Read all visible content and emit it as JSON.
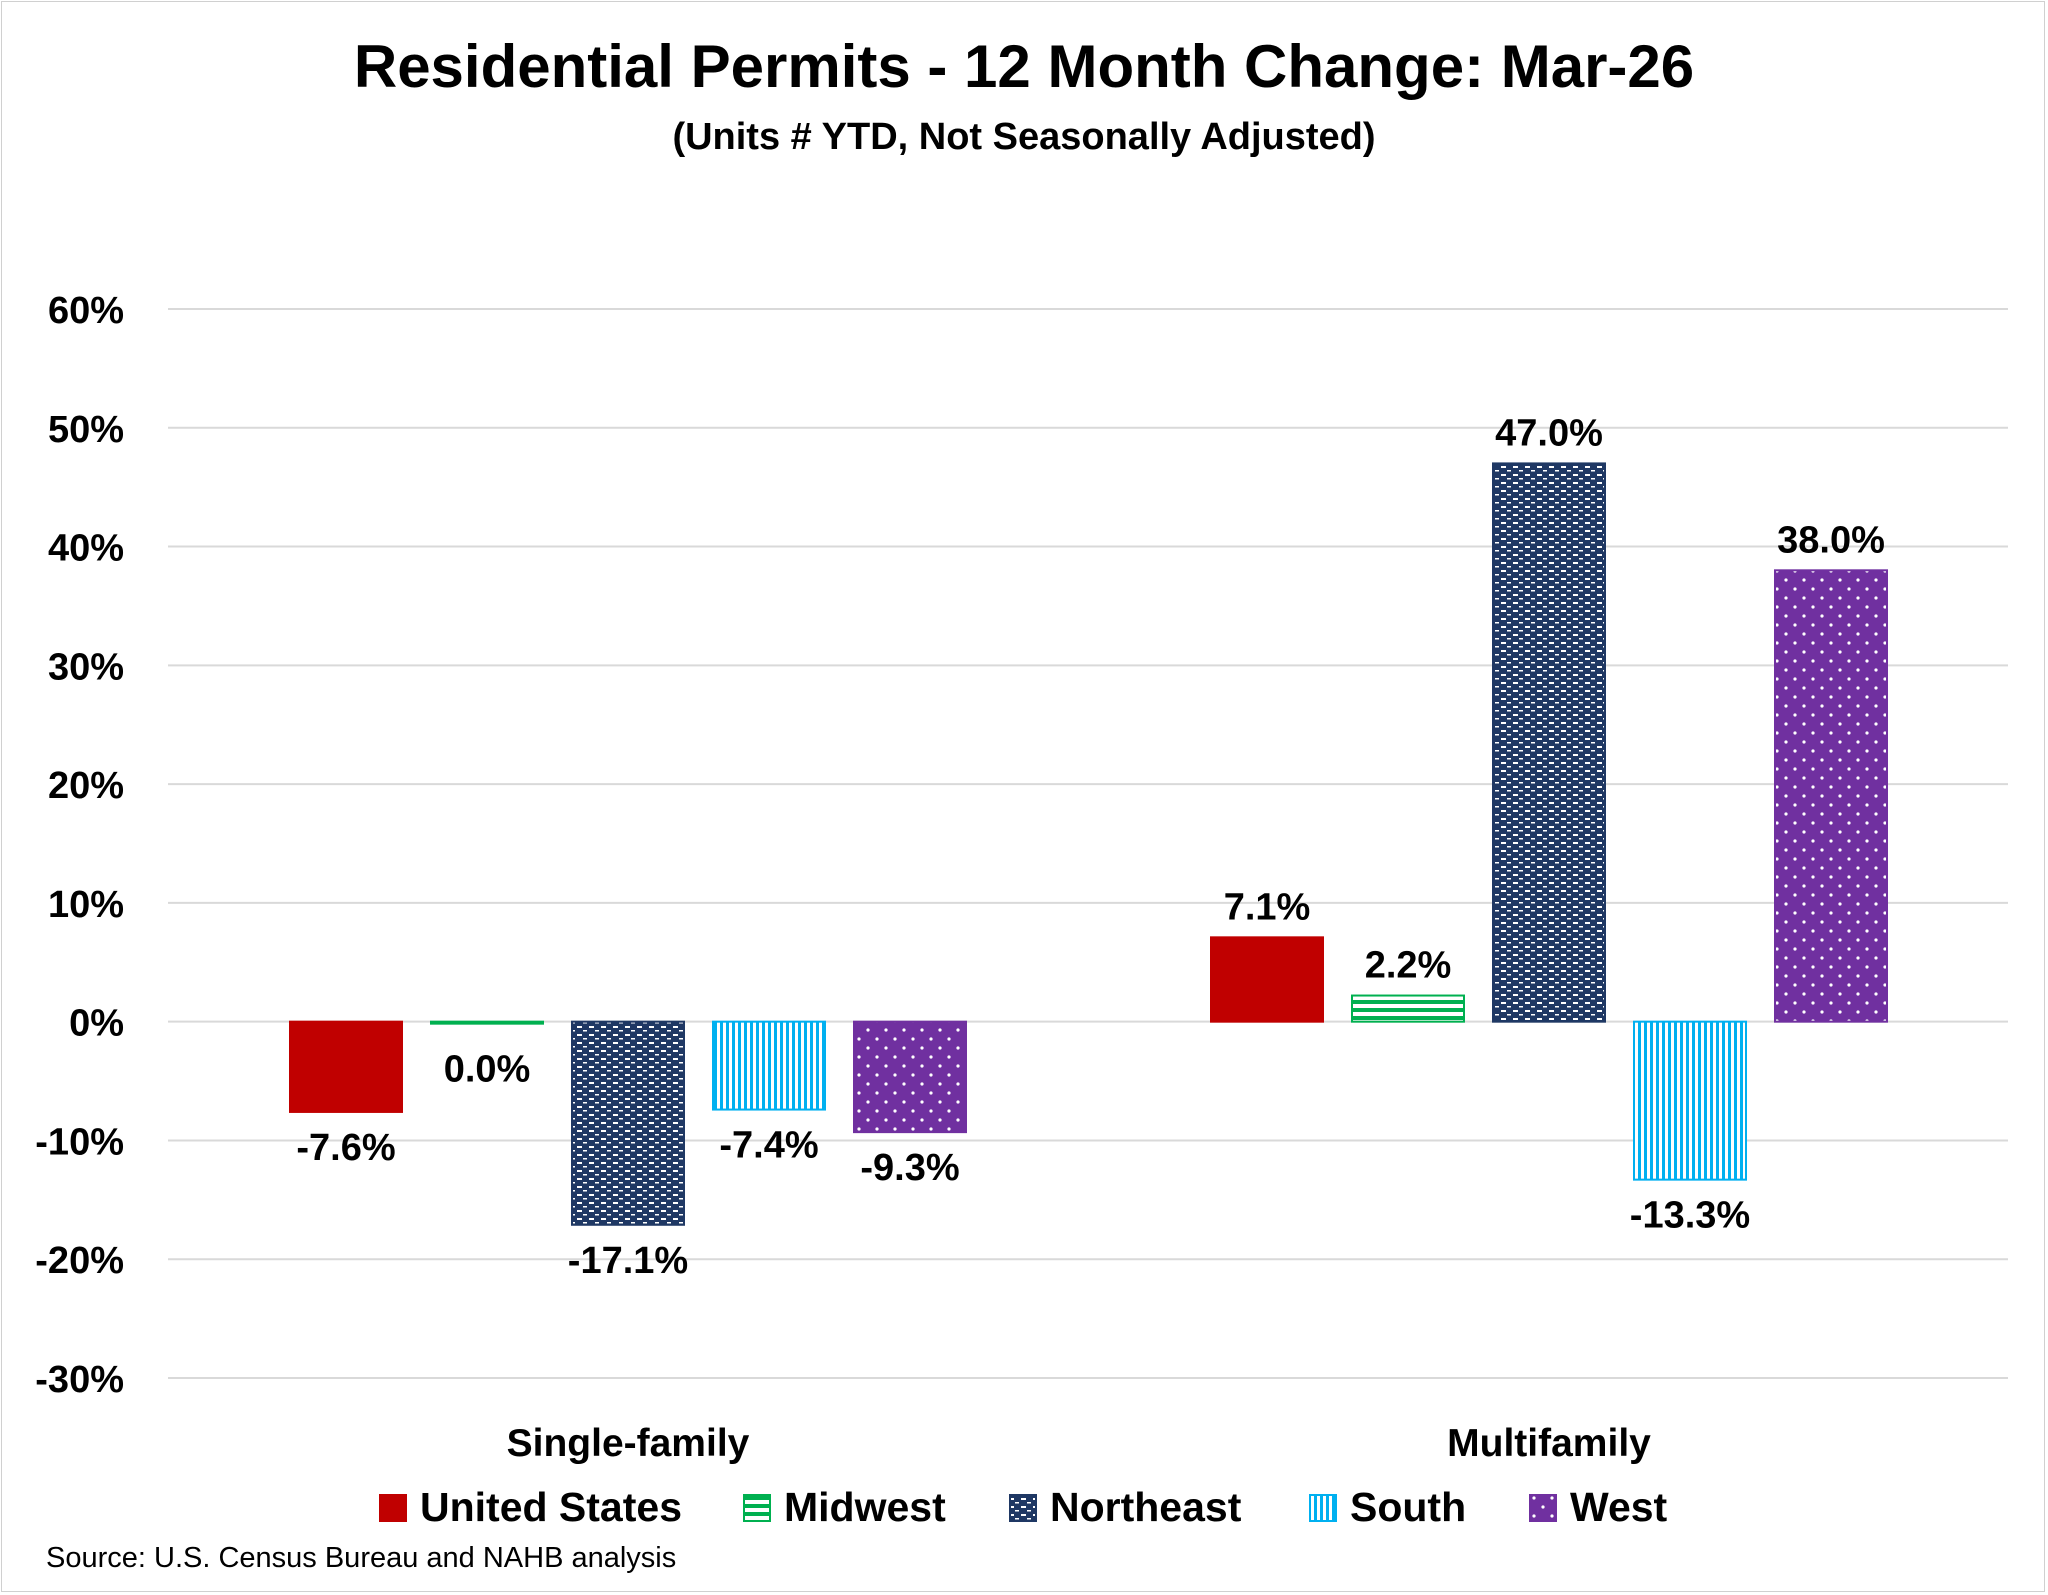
{
  "chart_data": {
    "type": "bar",
    "title": "Residential Permits - 12 Month Change:  Mar-26",
    "subtitle": "(Units # YTD, Not Seasonally Adjusted)",
    "categories": [
      "Single-family",
      "Multifamily"
    ],
    "series": [
      {
        "name": "United States",
        "values": [
          -7.6,
          7.1
        ],
        "labels": [
          "-7.6%",
          "7.1%"
        ],
        "color": "#c00000",
        "pattern": "solid"
      },
      {
        "name": "Midwest",
        "values": [
          0.0,
          2.2
        ],
        "labels": [
          "0.0%",
          "2.2%"
        ],
        "color": "#00b050",
        "pattern": "horizontal-stripes"
      },
      {
        "name": "Northeast",
        "values": [
          -17.1,
          47.0
        ],
        "labels": [
          "-17.1%",
          "47.0%"
        ],
        "color": "#1f3864",
        "pattern": "dashes"
      },
      {
        "name": "South",
        "values": [
          -7.4,
          -13.3
        ],
        "labels": [
          "-7.4%",
          "-13.3%"
        ],
        "color": "#00b0f0",
        "pattern": "vertical-stripes"
      },
      {
        "name": "West",
        "values": [
          -9.3,
          38.0
        ],
        "labels": [
          "-9.3%",
          "38.0%"
        ],
        "color": "#7030a0",
        "pattern": "dots"
      }
    ],
    "ylim": [
      -30,
      60
    ],
    "yticks": [
      60,
      50,
      40,
      30,
      20,
      10,
      0,
      -10,
      -20,
      -30
    ],
    "ytick_labels": [
      "60%",
      "50%",
      "40%",
      "30%",
      "20%",
      "10%",
      "0%",
      "-10%",
      "-20%",
      "-30%"
    ],
    "grid": true,
    "legend_position": "bottom",
    "xlabel": "",
    "ylabel": ""
  },
  "source_note": "Source: U.S. Census Bureau and NAHB analysis"
}
